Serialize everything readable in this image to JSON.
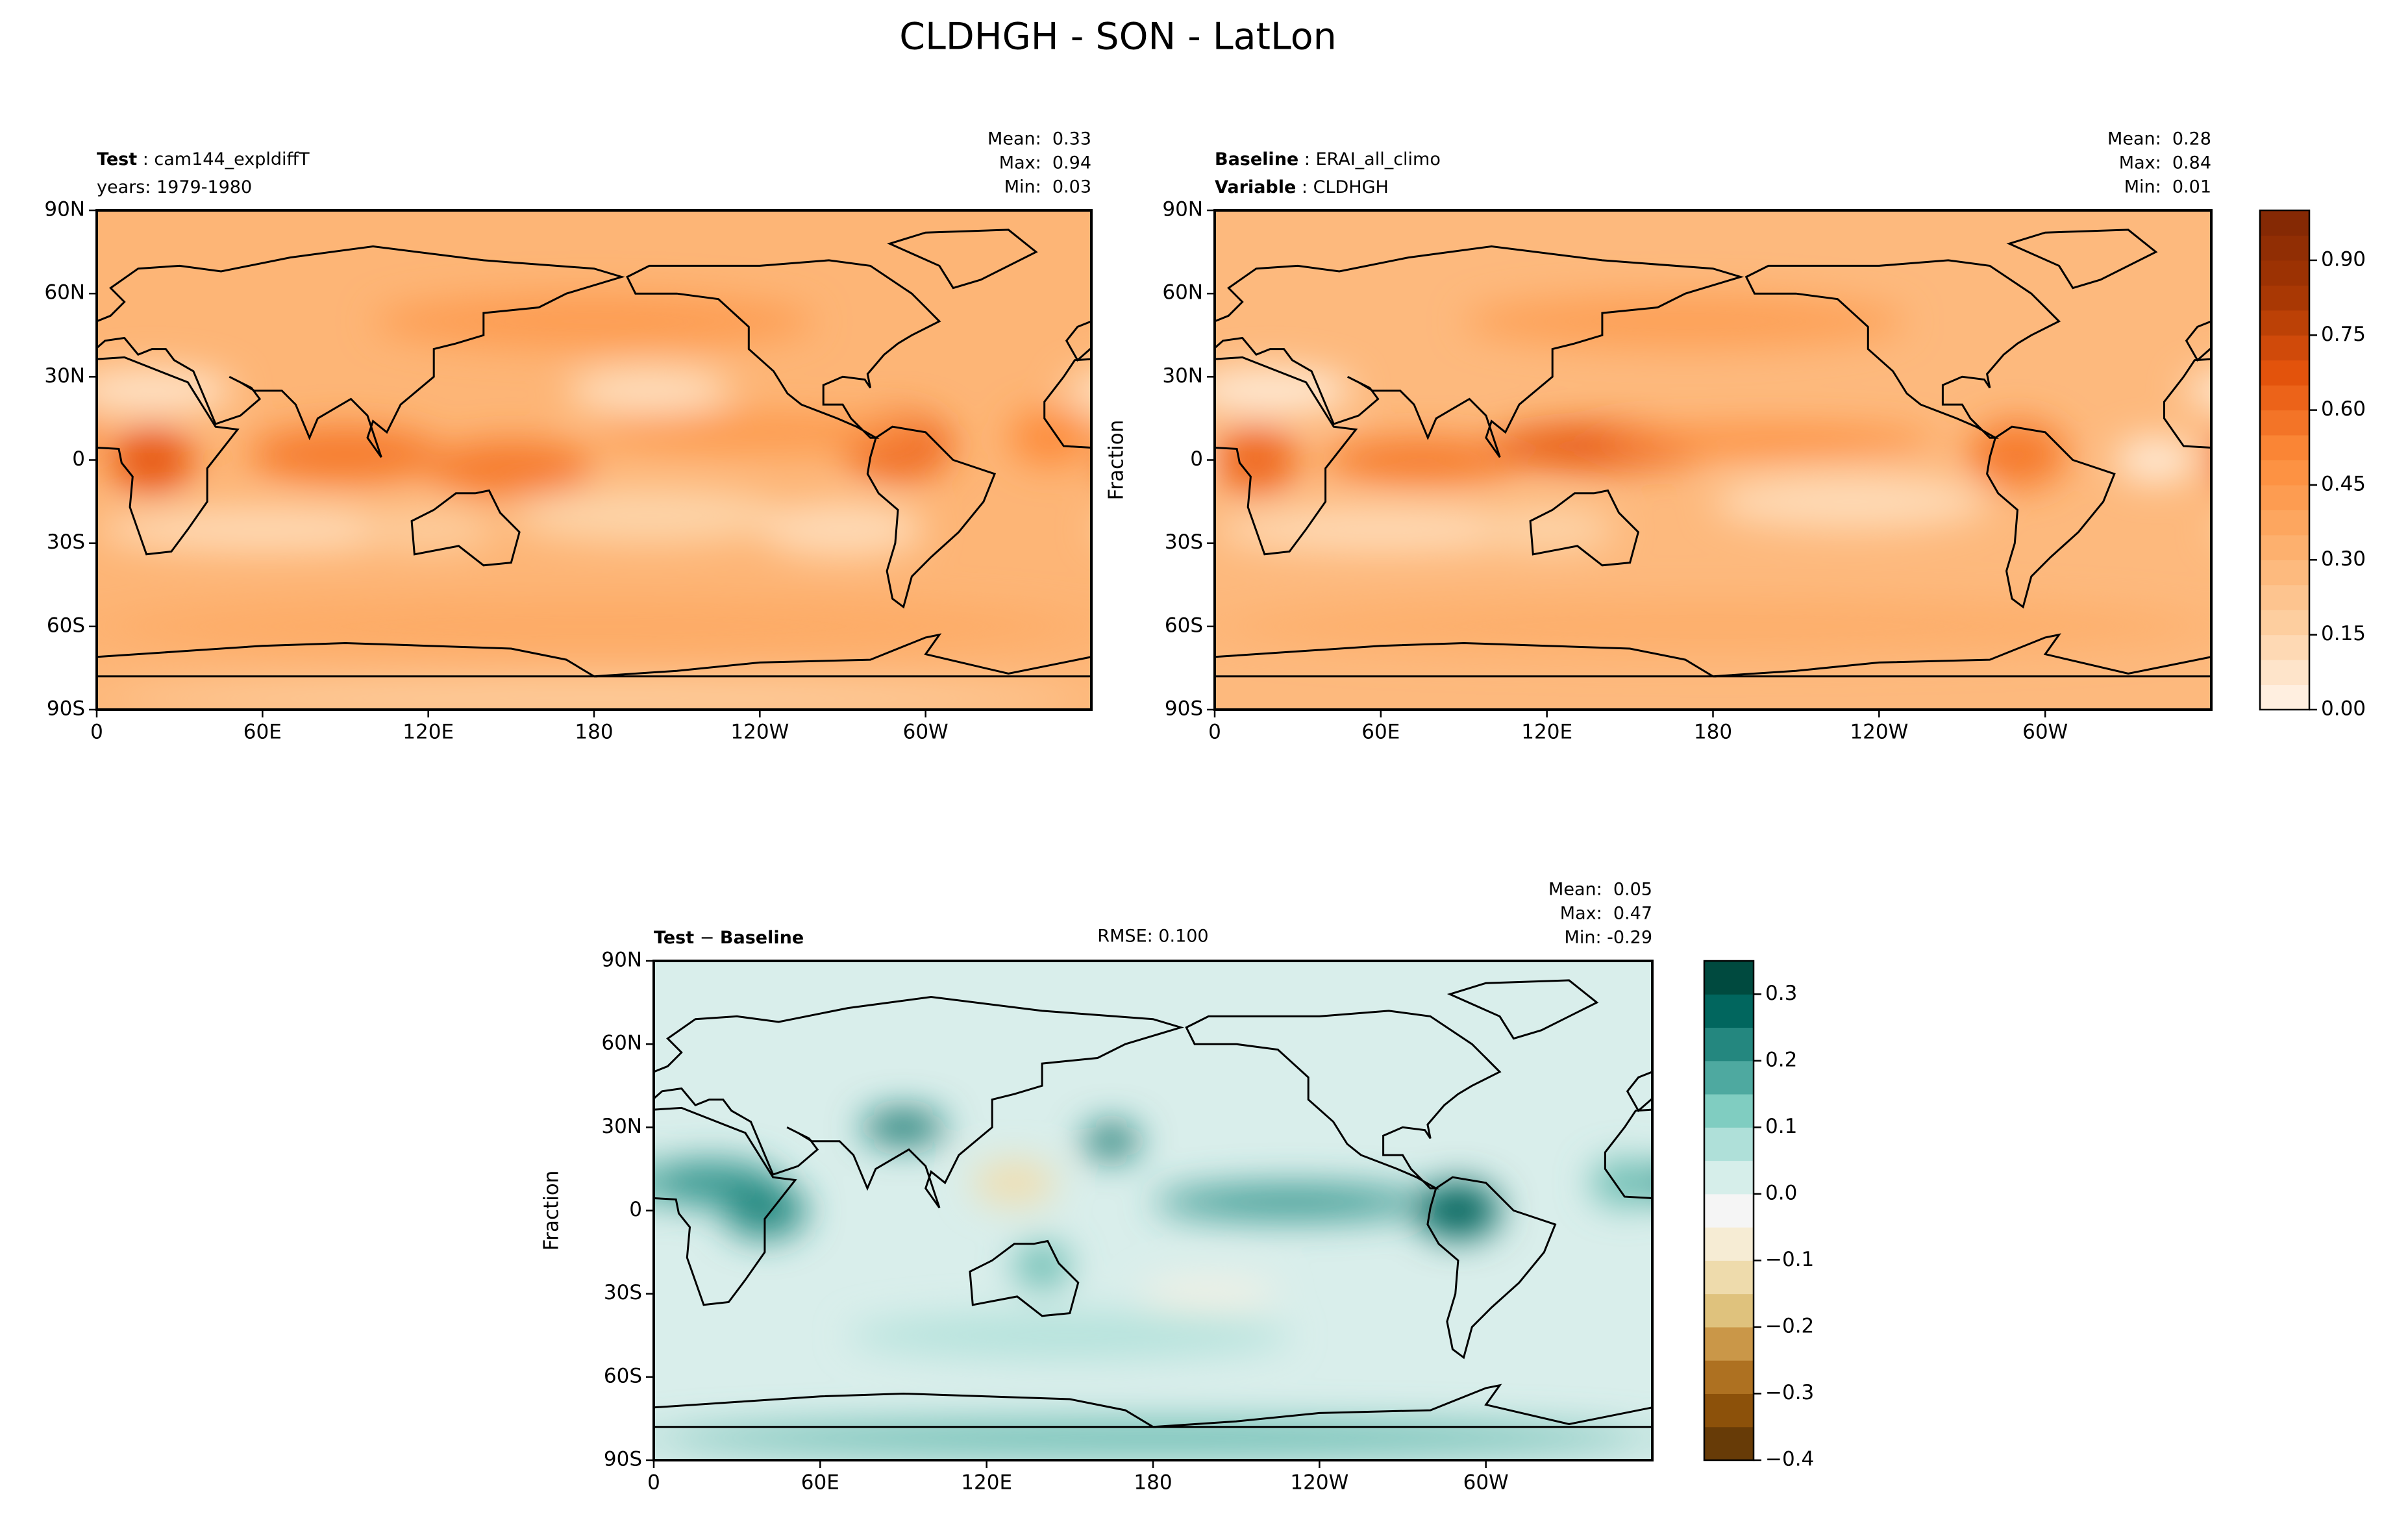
{
  "title": "CLDHGH - SON - LatLon",
  "chart_data": [
    {
      "type": "contour_map",
      "label_lines": [
        [
          {
            "text": "Test",
            "bold": true
          },
          {
            "text": " : "
          },
          {
            "text": "cam144_expldiffT"
          }
        ],
        [
          {
            "text": "years: 1979-1980"
          }
        ]
      ],
      "stats": [
        "Mean:  0.33",
        "Max:  0.94",
        "Min:  0.03"
      ],
      "xlim": [
        0,
        360
      ],
      "xticks": [
        0,
        {
          "value": 60,
          "label": "60E"
        },
        {
          "value": 120,
          "label": "120E"
        },
        180,
        {
          "value": 240,
          "label": "120W"
        },
        {
          "value": 300,
          "label": "60W"
        }
      ],
      "ylim": [
        -90,
        90
      ],
      "yticks": [
        {
          "value": -90,
          "label": "90S"
        },
        {
          "value": -60,
          "label": "60S"
        },
        {
          "value": -30,
          "label": "30S"
        },
        0,
        {
          "value": 30,
          "label": "30N"
        },
        {
          "value": 60,
          "label": "60N"
        },
        {
          "value": 90,
          "label": "90N"
        }
      ]
    },
    {
      "type": "contour_map",
      "label_lines": [
        [
          {
            "text": "Baseline",
            "bold": true
          },
          {
            "text": " : "
          },
          {
            "text": "ERAI_all_climo"
          }
        ],
        [
          {
            "text": "Variable",
            "bold": true
          },
          {
            "text": " : "
          },
          {
            "text": "CLDHGH"
          }
        ]
      ],
      "stats": [
        "Mean:  0.28",
        "Max:  0.84",
        "Min:  0.01"
      ],
      "ylabel": "Fraction",
      "xlim": [
        0,
        360
      ],
      "xticks": [
        0,
        {
          "value": 60,
          "label": "60E"
        },
        {
          "value": 120,
          "label": "120E"
        },
        180,
        {
          "value": 240,
          "label": "120W"
        },
        {
          "value": 300,
          "label": "60W"
        }
      ],
      "ylim": [
        -90,
        90
      ],
      "yticks": [
        {
          "value": -90,
          "label": "90S"
        },
        {
          "value": -60,
          "label": "60S"
        },
        {
          "value": -30,
          "label": "30S"
        },
        0,
        {
          "value": 30,
          "label": "30N"
        },
        {
          "value": 60,
          "label": "60N"
        },
        {
          "value": 90,
          "label": "90N"
        }
      ],
      "colorbar": {
        "clim": [
          0,
          1
        ],
        "levels": 20,
        "colors": [
          "#fff5eb",
          "#fdd0a2",
          "#fdae6b",
          "#fd8d3c",
          "#e6550d",
          "#a63603",
          "#7f2704"
        ],
        "ticks": [
          {
            "value": 0,
            "label": "0.00"
          },
          0.15,
          {
            "value": 0.3,
            "label": "0.30"
          },
          0.45,
          {
            "value": 0.6,
            "label": "0.60"
          },
          0.75,
          {
            "value": 0.9,
            "label": "0.90"
          }
        ]
      }
    },
    {
      "type": "contour_map",
      "label_lines": [
        [
          {
            "text": "Test",
            "bold": true
          },
          {
            "text": " − "
          },
          {
            "text": "Baseline",
            "bold": true
          }
        ]
      ],
      "center_label": "RMSE: 0.100",
      "stats": [
        "Mean:  0.05",
        "Max:  0.47",
        "Min: -0.29"
      ],
      "ylabel": "Fraction",
      "xlim": [
        0,
        360
      ],
      "xticks": [
        0,
        {
          "value": 60,
          "label": "60E"
        },
        {
          "value": 120,
          "label": "120E"
        },
        180,
        {
          "value": 240,
          "label": "120W"
        },
        {
          "value": 300,
          "label": "60W"
        }
      ],
      "ylim": [
        -90,
        90
      ],
      "yticks": [
        {
          "value": -90,
          "label": "90S"
        },
        {
          "value": -60,
          "label": "60S"
        },
        {
          "value": -30,
          "label": "30S"
        },
        0,
        {
          "value": 30,
          "label": "30N"
        },
        {
          "value": 60,
          "label": "60N"
        },
        {
          "value": 90,
          "label": "90N"
        }
      ],
      "colorbar": {
        "clim": [
          -0.4,
          0.35
        ],
        "levels": 15,
        "colors": [
          "#543005",
          "#8c510a",
          "#bf812d",
          "#dfc27d",
          "#f6e8c3",
          "#f5f5f5",
          "#c7eae5",
          "#80cdc1",
          "#35978f",
          "#01665e",
          "#003c30"
        ],
        "ticks": [
          {
            "value": -0.4,
            "label": "−0.4"
          },
          {
            "value": -0.3,
            "label": "−0.3"
          },
          {
            "value": -0.2,
            "label": "−0.2"
          },
          {
            "value": -0.1,
            "label": "−0.1"
          },
          {
            "value": 0,
            "label": "0.0"
          },
          0.1,
          0.2,
          0.3
        ]
      }
    }
  ]
}
